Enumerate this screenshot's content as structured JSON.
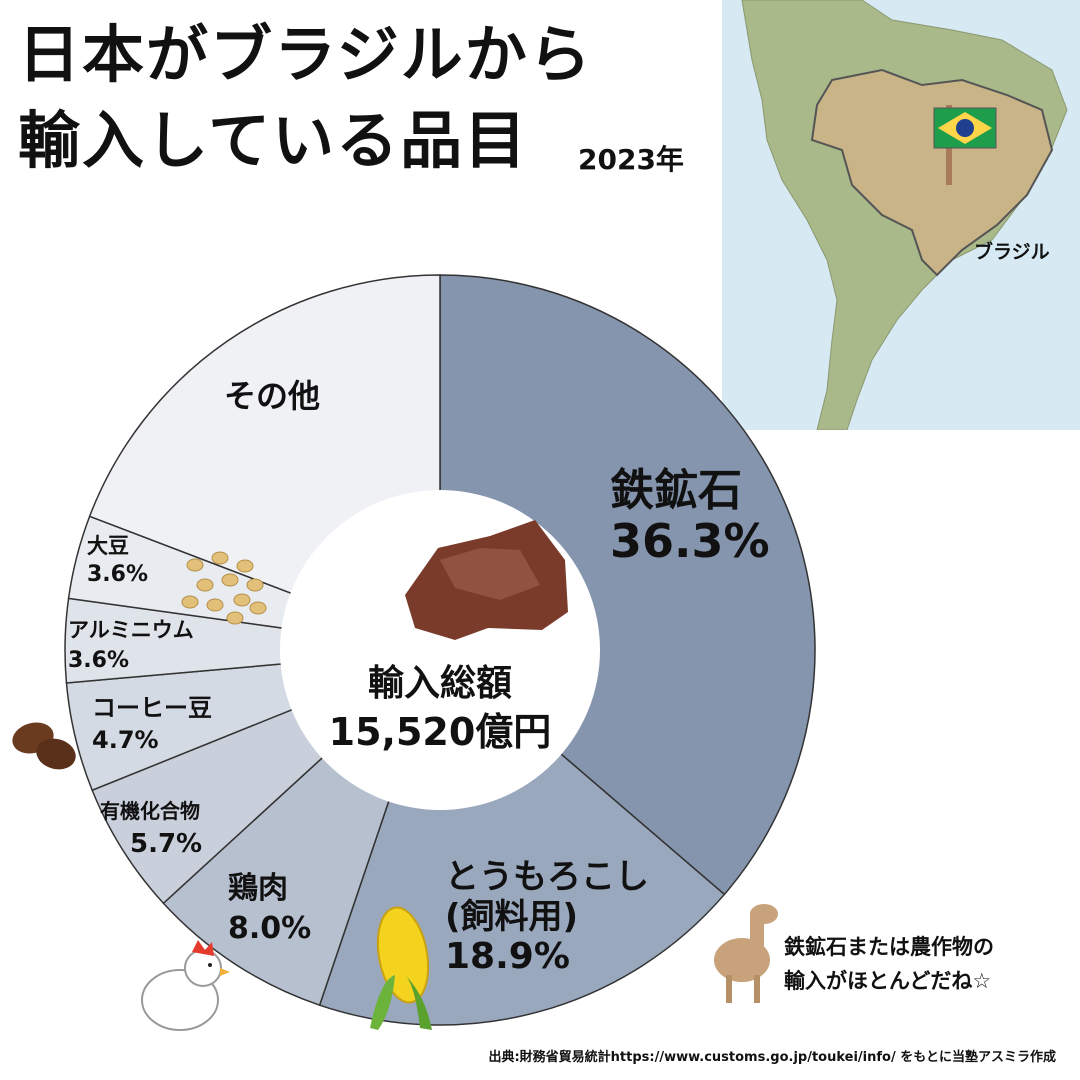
{
  "title": {
    "line1": "日本がブラジルから",
    "line2": "輸入している品目",
    "year": "2023年"
  },
  "map": {
    "country_label": "ブラジル",
    "flag_icon": "brazil-flag-icon"
  },
  "center": {
    "label": "輸入総額",
    "value": "15,520億円"
  },
  "speech": {
    "line1": "鉄鉱石または農作物の",
    "line2": "輸入がほとんどだね☆",
    "character_icon": "llama-icon"
  },
  "source": "出典:財務省貿易統計https://www.customs.go.jp/toukei/info/ をもとに当塾アスミラ作成",
  "colors": {
    "iron_ore": "#8595ae",
    "corn": "#9aa8be",
    "chicken": "#b6c0cf",
    "organic": "#c9d0db",
    "coffee": "#d4dae3",
    "aluminium": "#dfe3ea",
    "soy": "#e8ebf0",
    "other": "#eff1f5"
  },
  "chart_data": {
    "type": "pie",
    "style": "donut",
    "categories": [
      "鉄鉱石",
      "とうもろこし(飼料用)",
      "鶏肉",
      "有機化合物",
      "コーヒー豆",
      "アルミニウム",
      "大豆",
      "その他"
    ],
    "values": [
      36.3,
      18.9,
      8.0,
      5.7,
      4.7,
      3.6,
      3.6,
      19.2
    ],
    "labels": [
      {
        "name": [
          "鉄鉱石"
        ],
        "pct": "36.3%"
      },
      {
        "name": [
          "とうもろこし",
          "(飼料用)"
        ],
        "pct": "18.9%"
      },
      {
        "name": [
          "鶏肉"
        ],
        "pct": "8.0%"
      },
      {
        "name": [
          "有機化合物"
        ],
        "pct": "5.7%"
      },
      {
        "name": [
          "コーヒー豆"
        ],
        "pct": "4.7%"
      },
      {
        "name": [
          "アルミニウム"
        ],
        "pct": "3.6%"
      },
      {
        "name": [
          "大豆"
        ],
        "pct": "3.6%"
      },
      {
        "name": [
          "その他"
        ],
        "pct": ""
      }
    ]
  }
}
